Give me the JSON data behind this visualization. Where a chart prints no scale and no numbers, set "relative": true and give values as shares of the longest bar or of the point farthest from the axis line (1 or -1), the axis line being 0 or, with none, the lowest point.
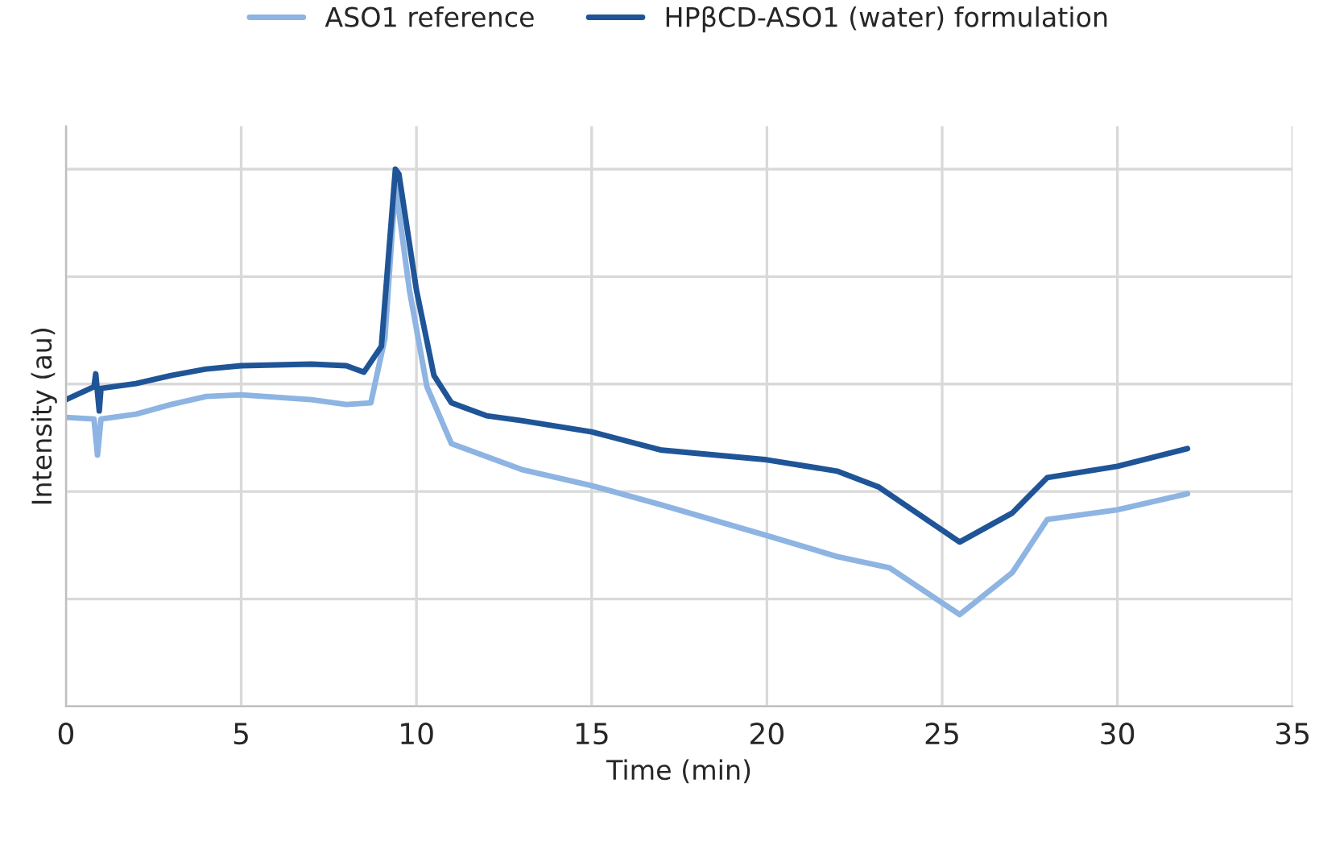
{
  "chart_data": {
    "type": "line",
    "relative": true,
    "xlabel": "Time (min)",
    "ylabel": "Intensity (au)",
    "xlim": [
      0,
      35
    ],
    "xticks": [
      0,
      5,
      10,
      15,
      20,
      25,
      30,
      35
    ],
    "grid": true,
    "legend": "top",
    "tick_labels": "x",
    "line_style": "solid",
    "marker": "none",
    "series": [
      {
        "name": "ASO1 reference",
        "color": "#8db4e2",
        "x": [
          0,
          0.8,
          0.9,
          1,
          2,
          3,
          4,
          5,
          7,
          8,
          8.7,
          9.1,
          9.4,
          9.8,
          10.3,
          11,
          12,
          13,
          15,
          17,
          20,
          22,
          23.5,
          25.5,
          27,
          28,
          30,
          32
        ],
        "values": [
          0.538,
          0.535,
          0.468,
          0.535,
          0.544,
          0.562,
          0.577,
          0.58,
          0.571,
          0.562,
          0.565,
          0.685,
          0.97,
          0.775,
          0.595,
          0.489,
          0.465,
          0.441,
          0.411,
          0.375,
          0.318,
          0.279,
          0.258,
          0.171,
          0.249,
          0.348,
          0.366,
          0.396
        ]
      },
      {
        "name": "HPβCD-ASO1 (water) formulation",
        "color": "#1f5597",
        "x": [
          0,
          0.5,
          0.8,
          0.85,
          0.95,
          1,
          2,
          3,
          4,
          5,
          7,
          8,
          8.5,
          9,
          9.4,
          9.5,
          10,
          10.5,
          11,
          12,
          13,
          15,
          17,
          20,
          22,
          23.2,
          25.5,
          27,
          28,
          30,
          32
        ],
        "values": [
          0.571,
          0.586,
          0.595,
          0.619,
          0.55,
          0.592,
          0.601,
          0.616,
          0.628,
          0.634,
          0.637,
          0.634,
          0.622,
          0.67,
          1.0,
          0.991,
          0.775,
          0.616,
          0.565,
          0.541,
          0.532,
          0.511,
          0.477,
          0.459,
          0.438,
          0.408,
          0.306,
          0.36,
          0.426,
          0.447,
          0.48
        ]
      }
    ]
  }
}
